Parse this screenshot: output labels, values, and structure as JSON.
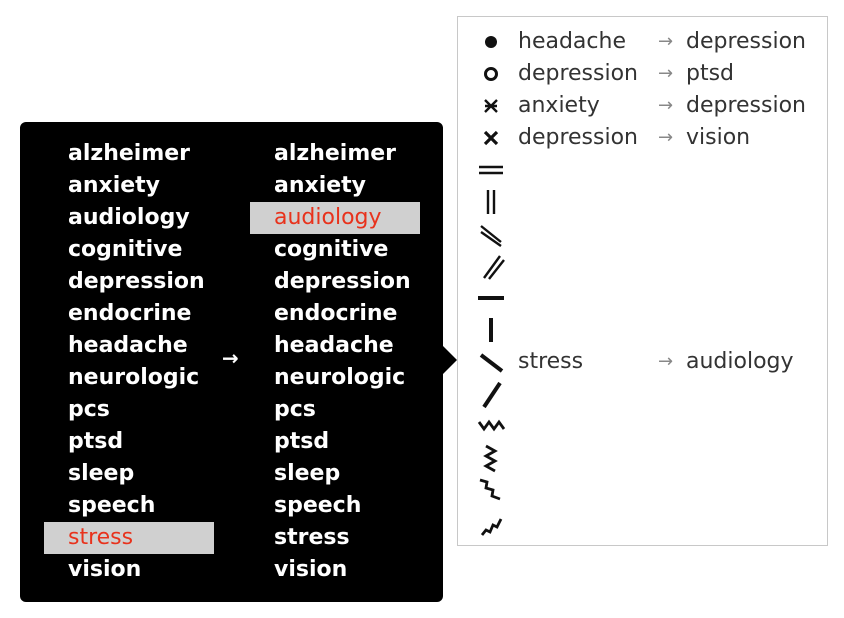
{
  "selector": {
    "from_list": [
      "alzheimer",
      "anxiety",
      "audiology",
      "cognitive",
      "depression",
      "endocrine",
      "headache",
      "neurologic",
      "pcs",
      "ptsd",
      "sleep",
      "speech",
      "stress",
      "vision"
    ],
    "to_list": [
      "alzheimer",
      "anxiety",
      "audiology",
      "cognitive",
      "depression",
      "endocrine",
      "headache",
      "neurologic",
      "pcs",
      "ptsd",
      "sleep",
      "speech",
      "stress",
      "vision"
    ],
    "selected_from": "stress",
    "selected_to": "audiology",
    "arrow": "→",
    "highlight_color": "#e8321c"
  },
  "legend": {
    "arrow": "→",
    "rows": [
      {
        "icon": "filled-circle-icon",
        "from": "headache",
        "to": "depression"
      },
      {
        "icon": "open-circle-icon",
        "from": "depression",
        "to": "ptsd"
      },
      {
        "icon": "double-cross-icon",
        "from": "anxiety",
        "to": "depression"
      },
      {
        "icon": "cross-icon",
        "from": "depression",
        "to": "vision"
      },
      {
        "icon": "double-horizontal-line-icon",
        "from": "",
        "to": ""
      },
      {
        "icon": "double-vertical-line-icon",
        "from": "",
        "to": ""
      },
      {
        "icon": "double-backslash-icon",
        "from": "",
        "to": ""
      },
      {
        "icon": "double-slash-icon",
        "from": "",
        "to": ""
      },
      {
        "icon": "horizontal-bar-icon",
        "from": "",
        "to": ""
      },
      {
        "icon": "vertical-bar-icon",
        "from": "",
        "to": ""
      },
      {
        "icon": "backslash-bar-icon",
        "from": "stress",
        "to": "audiology"
      },
      {
        "icon": "slash-bar-icon",
        "from": "",
        "to": ""
      },
      {
        "icon": "zigzag-horizontal-icon",
        "from": "",
        "to": ""
      },
      {
        "icon": "zigzag-vertical-icon",
        "from": "",
        "to": ""
      },
      {
        "icon": "zigzag-backslash-icon",
        "from": "",
        "to": ""
      },
      {
        "icon": "zigzag-slash-icon",
        "from": "",
        "to": ""
      }
    ]
  }
}
